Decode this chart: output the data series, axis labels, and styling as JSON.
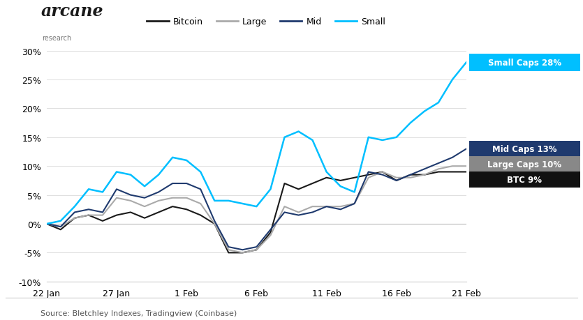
{
  "x_labels": [
    "22 Jan",
    "27 Jan",
    "1 Feb",
    "6 Feb",
    "11 Feb",
    "16 Feb",
    "21 Feb"
  ],
  "bitcoin": [
    0,
    -1.0,
    1.0,
    1.5,
    0.5,
    1.5,
    2.0,
    1.0,
    2.0,
    3.0,
    2.5,
    1.5,
    0.0,
    -5.0,
    -5.0,
    -4.5,
    -1.5,
    7.0,
    6.0,
    7.0,
    8.0,
    7.5,
    8.0,
    8.5,
    9.0,
    7.5,
    8.5,
    8.5,
    9.0,
    9.0,
    9.0
  ],
  "large": [
    0,
    -0.5,
    1.0,
    1.5,
    1.5,
    4.5,
    4.0,
    3.0,
    4.0,
    4.5,
    4.5,
    3.5,
    0.0,
    -4.5,
    -5.0,
    -4.5,
    -2.0,
    3.0,
    2.0,
    3.0,
    3.0,
    3.0,
    3.5,
    8.0,
    9.0,
    8.0,
    8.0,
    8.5,
    9.5,
    10.0,
    10.0
  ],
  "mid": [
    0,
    -0.5,
    2.0,
    2.5,
    2.0,
    6.0,
    5.0,
    4.5,
    5.5,
    7.0,
    7.0,
    6.0,
    0.5,
    -4.0,
    -4.5,
    -4.0,
    -1.0,
    2.0,
    1.5,
    2.0,
    3.0,
    2.5,
    3.5,
    9.0,
    8.5,
    7.5,
    8.5,
    9.5,
    10.5,
    11.5,
    13.0
  ],
  "small": [
    0,
    0.5,
    3.0,
    6.0,
    5.5,
    9.0,
    8.5,
    6.5,
    8.5,
    11.5,
    11.0,
    9.0,
    4.0,
    4.0,
    3.5,
    3.0,
    6.0,
    15.0,
    16.0,
    14.5,
    9.0,
    6.5,
    5.5,
    15.0,
    14.5,
    15.0,
    17.5,
    19.5,
    21.0,
    25.0,
    28.0
  ],
  "bitcoin_color": "#1a1a1a",
  "large_color": "#aaaaaa",
  "mid_color": "#1f3a6e",
  "small_color": "#00bfff",
  "annotation_small_bg": "#00bfff",
  "annotation_mid_bg": "#1f3a6e",
  "annotation_large_bg": "#888888",
  "annotation_btc_bg": "#111111",
  "ylim": [
    -10,
    30
  ],
  "yticks": [
    -10,
    -5,
    0,
    5,
    10,
    15,
    20,
    25,
    30
  ],
  "source_text": "Source: Bletchley Indexes, Tradingview (Coinbase)",
  "legend_labels": [
    "Bitcoin",
    "Large",
    "Mid",
    "Small"
  ],
  "background_color": "#ffffff",
  "grid_color": "#e0e0e0"
}
